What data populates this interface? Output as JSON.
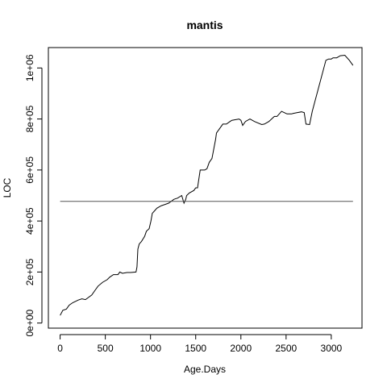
{
  "chart_data": {
    "type": "line",
    "title": "mantis",
    "xlabel": "Age.Days",
    "ylabel": "LOC",
    "xlim": [
      -130,
      3340
    ],
    "ylim": [
      -20000,
      1080000
    ],
    "x_ticks": [
      0,
      500,
      1000,
      1500,
      2000,
      2500,
      3000
    ],
    "x_tick_labels": [
      "0",
      "500",
      "1000",
      "1500",
      "2000",
      "2500",
      "3000"
    ],
    "y_ticks": [
      0,
      200000,
      400000,
      600000,
      800000,
      1000000
    ],
    "y_tick_labels": [
      "0e+00",
      "2e+05",
      "4e+05",
      "6e+05",
      "8e+05",
      "1e+06"
    ],
    "grid": false,
    "series": [
      {
        "x": [
          0,
          30,
          70,
          100,
          140,
          200,
          240,
          280,
          350,
          390,
          420,
          470,
          520,
          550,
          590,
          640,
          660,
          690,
          740,
          780,
          840,
          850,
          860,
          875,
          900,
          935,
          955,
          985,
          1005,
          1020,
          1045,
          1070,
          1120,
          1160,
          1200,
          1240,
          1260,
          1300,
          1345,
          1370,
          1390,
          1400,
          1430,
          1480,
          1500,
          1520,
          1550,
          1570,
          1600,
          1625,
          1650,
          1680,
          1720,
          1730,
          1760,
          1800,
          1840,
          1880,
          1900,
          1980,
          2000,
          2020,
          2050,
          2100,
          2150,
          2230,
          2260,
          2310,
          2370,
          2400,
          2450,
          2480,
          2510,
          2560,
          2580,
          2620,
          2670,
          2700,
          2720,
          2760,
          2790,
          2940,
          2970,
          3000,
          3020,
          3060,
          3100,
          3150,
          3200,
          3240
        ],
        "y": [
          30000,
          50000,
          55000,
          70000,
          80000,
          90000,
          95000,
          92000,
          110000,
          130000,
          145000,
          160000,
          170000,
          180000,
          190000,
          190000,
          200000,
          195000,
          198000,
          198000,
          200000,
          220000,
          290000,
          310000,
          320000,
          340000,
          360000,
          370000,
          400000,
          430000,
          440000,
          450000,
          460000,
          465000,
          470000,
          480000,
          485000,
          490000,
          500000,
          470000,
          485000,
          500000,
          510000,
          520000,
          530000,
          530000,
          600000,
          600000,
          600000,
          605000,
          630000,
          645000,
          720000,
          745000,
          760000,
          780000,
          780000,
          790000,
          795000,
          800000,
          795000,
          775000,
          790000,
          800000,
          790000,
          778000,
          780000,
          790000,
          810000,
          810000,
          830000,
          825000,
          820000,
          820000,
          822000,
          825000,
          828000,
          825000,
          780000,
          778000,
          830000,
          1030000,
          1035000,
          1035000,
          1040000,
          1040000,
          1048000,
          1050000,
          1030000,
          1010000
        ]
      },
      {
        "x": [
          0,
          3240
        ],
        "y": [
          477000,
          477000
        ]
      }
    ]
  }
}
